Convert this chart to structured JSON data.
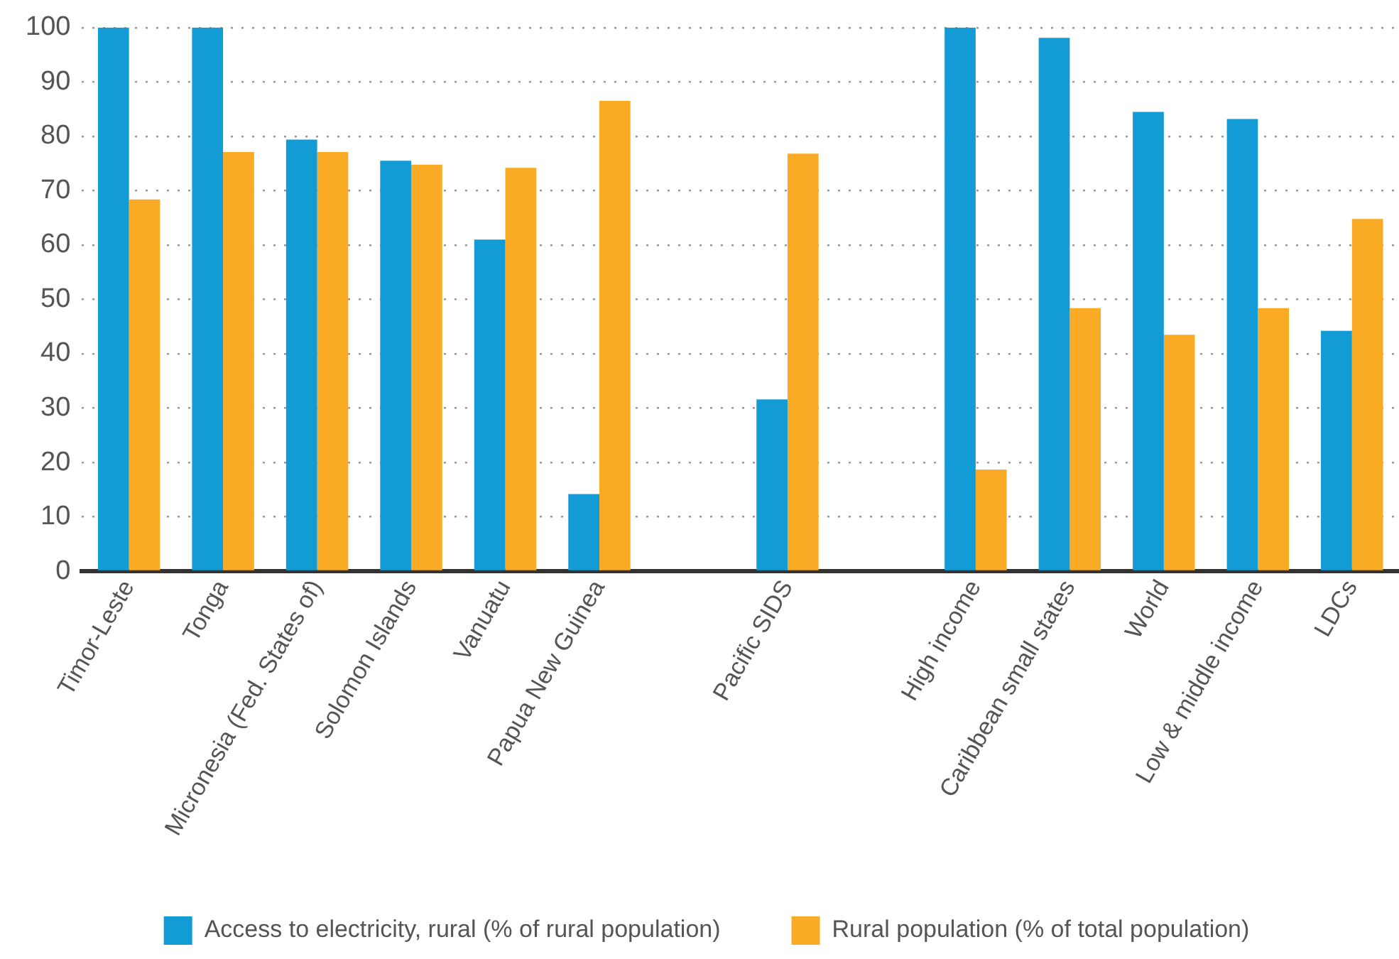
{
  "chart_data": {
    "type": "bar",
    "categories": [
      "Timor-Leste",
      "Tonga",
      "Micronesia (Fed. States of)",
      "Solomon Islands",
      "Vanuatu",
      "Papua New Guinea",
      null,
      "Pacific SIDS",
      null,
      "High income",
      "Caribbean small states",
      "World",
      "Low & middle income",
      "LDCs"
    ],
    "series": [
      {
        "name": "Access to electricity, rural (% of rural population)",
        "color": "#139bd6",
        "values": [
          100,
          100,
          79.4,
          75.5,
          61,
          14.2,
          null,
          31.6,
          null,
          100,
          98.1,
          84.5,
          83.2,
          44.2
        ]
      },
      {
        "name": "Rural population (% of total population)",
        "color": "#f9ab25",
        "values": [
          68.4,
          77.1,
          77.1,
          74.8,
          74.2,
          86.5,
          null,
          76.8,
          null,
          18.7,
          48.4,
          43.5,
          48.4,
          64.8
        ]
      }
    ],
    "ylim": [
      0,
      100
    ],
    "yticks": [
      0,
      10,
      20,
      30,
      40,
      50,
      60,
      70,
      80,
      90,
      100
    ],
    "grid": "y",
    "legend": "bottom"
  }
}
